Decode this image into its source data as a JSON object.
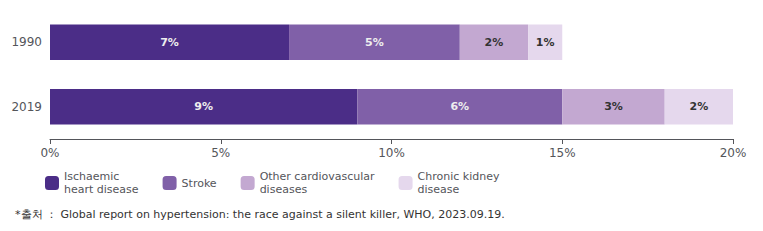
{
  "chart_data": {
    "type": "bar",
    "orientation": "horizontal",
    "stacked": true,
    "categories": [
      "1990",
      "2019"
    ],
    "series": [
      {
        "name": "Ischaemic\nheart disease",
        "color": "#4B2D87",
        "values": [
          7,
          9
        ],
        "value_labels": [
          "7%",
          "9%"
        ]
      },
      {
        "name": "Stroke",
        "color": "#8060A8",
        "values": [
          5,
          6
        ],
        "value_labels": [
          "5%",
          "6%"
        ]
      },
      {
        "name": "Other cardiovascular\ndiseases",
        "color": "#C3A8D1",
        "values": [
          2,
          3
        ],
        "value_labels": [
          "2%",
          "3%"
        ]
      },
      {
        "name": "Chronic kidney\ndisease",
        "color": "#E5D8ED",
        "values": [
          1,
          2
        ],
        "value_labels": [
          "1%",
          "2%"
        ]
      }
    ],
    "xlim": [
      0,
      20
    ],
    "xticks": [
      {
        "value": 0,
        "label": "0%"
      },
      {
        "value": 5,
        "label": "5%"
      },
      {
        "value": 10,
        "label": "10%"
      },
      {
        "value": 15,
        "label": "15%"
      },
      {
        "value": 20,
        "label": "20%"
      }
    ],
    "data_labels": true,
    "grid": false,
    "legend": "bottom",
    "annotations": [
      "*출처 ： Global report on hypertension: the race against a silent killer, WHO, 2023.09.19."
    ]
  }
}
